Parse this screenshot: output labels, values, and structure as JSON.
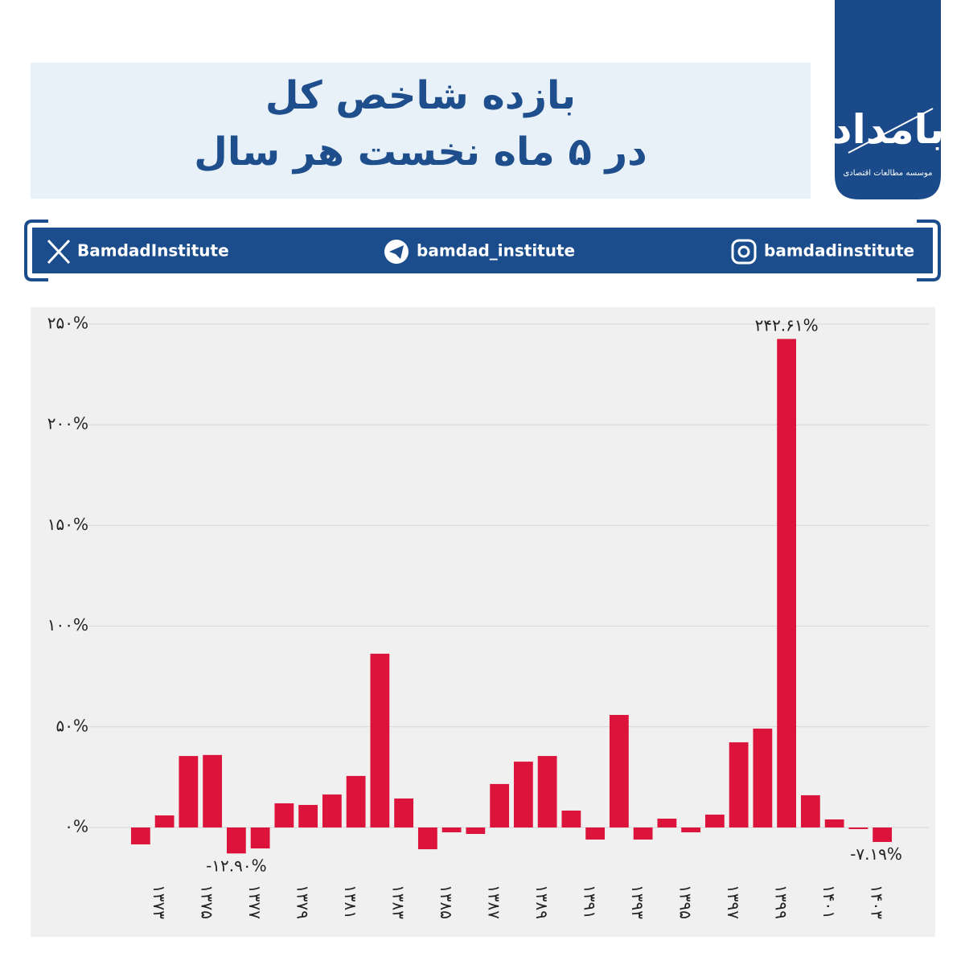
{
  "header": {
    "title_lines": [
      "بازده شاخص کل",
      "در ۵ ماه نخست هر سال"
    ],
    "logo": {
      "name": "بامداد",
      "subtitle": "موسسه مطالعات اقتصادی"
    },
    "socials": {
      "x": "BamdadInstitute",
      "telegram": "bamdad_institute",
      "instagram": "bamdadinstitute"
    }
  },
  "chart_data": {
    "type": "bar",
    "categories": [
      null,
      "۱۳۷۳",
      null,
      "۱۳۷۵",
      null,
      "۱۳۷۷",
      null,
      "۱۳۷۹",
      null,
      "۱۳۸۱",
      null,
      "۱۳۸۳",
      null,
      "۱۳۸۵",
      null,
      "۱۳۸۷",
      null,
      "۱۳۸۹",
      null,
      "۱۳۹۱",
      null,
      "۱۳۹۳",
      null,
      "۱۳۹۵",
      null,
      "۱۳۹۷",
      null,
      "۱۳۹۹",
      null,
      "۱۴۰۱",
      null,
      "۱۴۰۳"
    ],
    "values": [
      -8.4,
      6,
      35.5,
      36,
      -12.9,
      -10.4,
      12,
      11.2,
      16.4,
      25.6,
      86.3,
      14.4,
      -10.8,
      -2.4,
      -3.2,
      21.6,
      32.7,
      35.5,
      8.4,
      -6,
      55.9,
      -6,
      4.4,
      -2.4,
      6.4,
      42.3,
      49.1,
      242.61,
      16,
      4,
      -0.8,
      -7.19
    ],
    "value_labels": [
      null,
      null,
      null,
      null,
      "-۱۲.۹۰%",
      null,
      null,
      null,
      null,
      null,
      null,
      null,
      null,
      null,
      null,
      null,
      null,
      null,
      null,
      null,
      null,
      null,
      null,
      null,
      null,
      null,
      null,
      "۲۴۲.۶۱%",
      null,
      null,
      null,
      "-۷.۱۹%"
    ],
    "color": "#dc143c",
    "ylim": [
      -20,
      255
    ],
    "yticks": [
      {
        "value": 0,
        "label": "۰%"
      },
      {
        "value": 50,
        "label": "۵۰%"
      },
      {
        "value": 100,
        "label": "۱۰۰%"
      },
      {
        "value": 150,
        "label": "۱۵۰%"
      },
      {
        "value": 200,
        "label": "۲۰۰%"
      },
      {
        "value": 250,
        "label": "۲۵۰%"
      }
    ],
    "grid": true
  }
}
